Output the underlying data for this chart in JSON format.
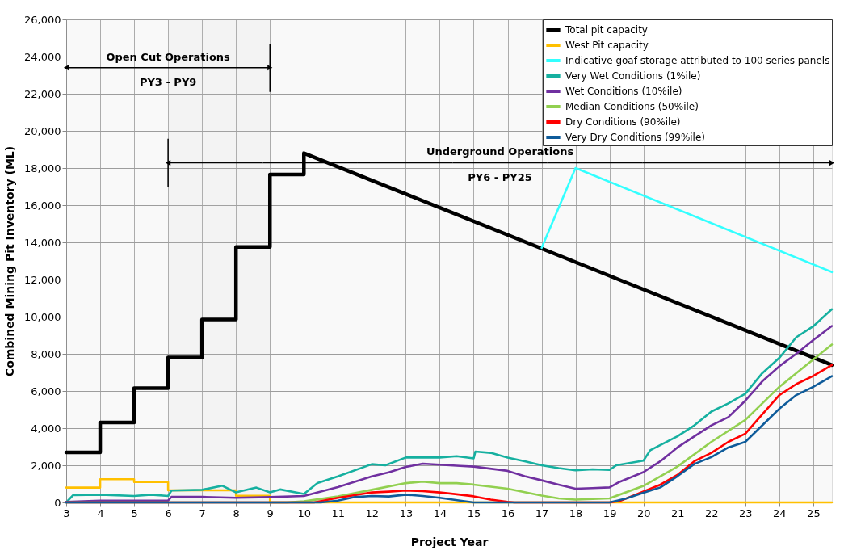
{
  "chart_data": {
    "type": "line",
    "xlabel": "Project Year",
    "ylabel": "Combined Mining Pit Inventory (ML)",
    "xlim": [
      3,
      25.55
    ],
    "ylim": [
      0,
      26000
    ],
    "xticks": [
      3,
      4,
      5,
      6,
      7,
      8,
      9,
      10,
      11,
      12,
      13,
      14,
      15,
      16,
      17,
      18,
      19,
      20,
      21,
      22,
      23,
      24,
      25
    ],
    "yticks": [
      0,
      {
        "value": 2000,
        "label": "2,000"
      },
      {
        "value": 4000,
        "label": "4,000"
      },
      {
        "value": 6000,
        "label": "6,000"
      },
      {
        "value": 8000,
        "label": "8,000"
      },
      {
        "value": 10000,
        "label": "10,000"
      },
      {
        "value": 12000,
        "label": "12,000"
      },
      {
        "value": 14000,
        "label": "14,000"
      },
      {
        "value": 16000,
        "label": "16,000"
      },
      {
        "value": 18000,
        "label": "18,000"
      },
      {
        "value": 20000,
        "label": "20,000"
      },
      {
        "value": 22000,
        "label": "22,000"
      },
      {
        "value": 24000,
        "label": "24,000"
      },
      {
        "value": 26000,
        "label": "26,000"
      }
    ],
    "grid": true,
    "legend": "top right",
    "line_style": "solid",
    "marker": "none",
    "series": [
      {
        "name": "Total pit capacity",
        "color": "#000000",
        "x": [
          3,
          4,
          4,
          5,
          5,
          6,
          6,
          7,
          7,
          8,
          8,
          9,
          9,
          10,
          10,
          25.55
        ],
        "values": [
          2700,
          2700,
          4300,
          4300,
          6150,
          6150,
          7800,
          7800,
          9850,
          9850,
          13750,
          13750,
          17650,
          17650,
          18800,
          7400
        ]
      },
      {
        "name": "West Pit capacity",
        "color": "#ffc000",
        "x": [
          3,
          4,
          4,
          5,
          5,
          6,
          6,
          8,
          8,
          9,
          9,
          25.55
        ],
        "values": [
          800,
          800,
          1250,
          1250,
          1100,
          1100,
          650,
          650,
          360,
          360,
          0,
          0
        ]
      },
      {
        "name": "Indicative goaf storage attributed to 100 series panels",
        "color": "#33ffff",
        "x": [
          17,
          18,
          25.55
        ],
        "values": [
          13700,
          18000,
          12400
        ]
      },
      {
        "name": "Very Wet Conditions (1%ile)",
        "color": "#16b0a0",
        "x": [
          3,
          3.2,
          4,
          5,
          5.5,
          6,
          6.1,
          7,
          7.6,
          8,
          8.6,
          9,
          9.3,
          10,
          10.4,
          11,
          12,
          12.4,
          13,
          14,
          14.5,
          15,
          15.05,
          15.5,
          16,
          16.5,
          17,
          17.5,
          18,
          18.5,
          19,
          19.2,
          20,
          20.2,
          21,
          21.5,
          22,
          22.5,
          23,
          23.5,
          24,
          24.5,
          25,
          25.55
        ],
        "values": [
          0,
          390,
          420,
          350,
          420,
          350,
          640,
          680,
          900,
          540,
          800,
          540,
          700,
          460,
          1040,
          1400,
          2060,
          2000,
          2420,
          2420,
          2490,
          2370,
          2740,
          2670,
          2410,
          2220,
          2000,
          1850,
          1730,
          1780,
          1750,
          2000,
          2250,
          2810,
          3560,
          4150,
          4890,
          5330,
          5850,
          6960,
          7780,
          8890,
          9480,
          10400
        ]
      },
      {
        "name": "Wet Conditions (10%ile)",
        "color": "#7030a0",
        "x": [
          3,
          4,
          5,
          6,
          6.1,
          7,
          8,
          9,
          10,
          11,
          12,
          12.5,
          13,
          13.5,
          14,
          14.6,
          15,
          16,
          16.5,
          17,
          17.5,
          18,
          18.5,
          19,
          19.3,
          20,
          20.5,
          21,
          21.5,
          22,
          22.5,
          23,
          23.5,
          24,
          24.5,
          25,
          25.55
        ],
        "values": [
          30,
          100,
          100,
          100,
          300,
          300,
          250,
          290,
          350,
          830,
          1400,
          1620,
          1910,
          2090,
          2030,
          1970,
          1930,
          1700,
          1410,
          1190,
          960,
          740,
          770,
          810,
          1110,
          1630,
          2220,
          2960,
          3560,
          4150,
          4590,
          5480,
          6520,
          7330,
          8000,
          8740,
          9500
        ]
      },
      {
        "name": "Median Conditions (50%ile)",
        "color": "#92d050",
        "x": [
          3,
          9.5,
          10,
          11,
          12,
          13,
          13.5,
          14,
          14.5,
          15,
          16,
          17,
          17.5,
          18,
          19,
          20,
          21,
          22,
          23,
          23.5,
          24,
          24.5,
          25,
          25.55
        ],
        "values": [
          0,
          0,
          60,
          320,
          680,
          1040,
          1120,
          1040,
          1040,
          960,
          740,
          370,
          220,
          150,
          220,
          890,
          1930,
          3260,
          4440,
          5330,
          6220,
          6960,
          7700,
          8500
        ]
      },
      {
        "name": "Dry Conditions (90%ile)",
        "color": "#ff0000",
        "x": [
          3,
          10.3,
          11,
          11.5,
          12,
          12.5,
          13,
          13.5,
          14,
          14.5,
          15,
          15.5,
          16,
          16.2,
          19,
          19.3,
          20,
          20.5,
          21,
          21.5,
          22,
          22.5,
          23,
          23.5,
          24,
          24.5,
          25,
          25.55
        ],
        "values": [
          0,
          0,
          250,
          390,
          540,
          580,
          640,
          610,
          540,
          440,
          330,
          150,
          30,
          0,
          0,
          70,
          590,
          960,
          1480,
          2220,
          2670,
          3260,
          3700,
          4740,
          5780,
          6370,
          6810,
          7400
        ]
      },
      {
        "name": "Very Dry Conditions (99%ile)",
        "color": "#0e5b9a",
        "x": [
          3,
          10.5,
          11,
          11.5,
          12,
          12.5,
          13,
          13.5,
          14,
          14.6,
          15,
          19,
          19.5,
          20,
          20.5,
          21,
          21.5,
          22,
          22.5,
          23,
          23.5,
          24,
          24.5,
          25,
          25.55
        ],
        "values": [
          0,
          0,
          100,
          290,
          350,
          320,
          420,
          350,
          250,
          100,
          0,
          0,
          220,
          520,
          810,
          1410,
          2070,
          2440,
          2960,
          3260,
          4150,
          5040,
          5780,
          6220,
          6800
        ]
      }
    ],
    "bands": [
      {
        "axis": "x",
        "from": 3,
        "to": 9,
        "label": "Open Cut Operations"
      },
      {
        "axis": "x",
        "from": 6,
        "to": 25.55,
        "label": "Underground Operations"
      }
    ],
    "annotations": [
      {
        "text": "PY3 - PY9",
        "x": 6,
        "y": 23400
      },
      "PY6 - PY25"
    ]
  }
}
